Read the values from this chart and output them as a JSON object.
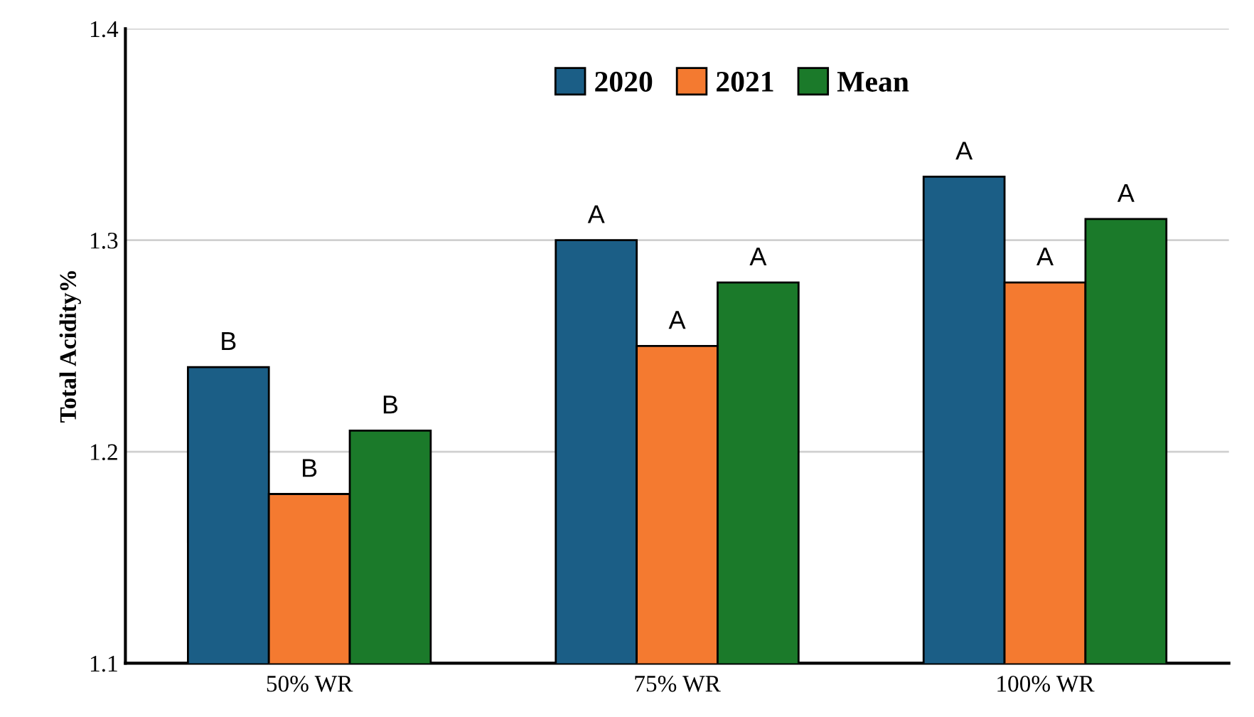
{
  "chart_data": {
    "type": "bar",
    "ylabel": "Total Acidity%",
    "categories": [
      "50% WR",
      "75% WR",
      "100% WR"
    ],
    "series": [
      {
        "name": "2020",
        "color": "#1b5e86",
        "values": [
          1.24,
          1.3,
          1.33
        ]
      },
      {
        "name": "2021",
        "color": "#f47a30",
        "values": [
          1.18,
          1.25,
          1.28
        ]
      },
      {
        "name": "Mean",
        "color": "#1b7a2a",
        "values": [
          1.21,
          1.28,
          1.31
        ]
      }
    ],
    "ylim": [
      1.1,
      1.4
    ],
    "yticks": [
      1.1,
      1.2,
      1.3,
      1.4
    ],
    "grid": "y",
    "legend": "top",
    "annotations": [
      "B",
      "A",
      "A",
      "B",
      "A",
      "A",
      "B",
      "A",
      "A"
    ]
  }
}
